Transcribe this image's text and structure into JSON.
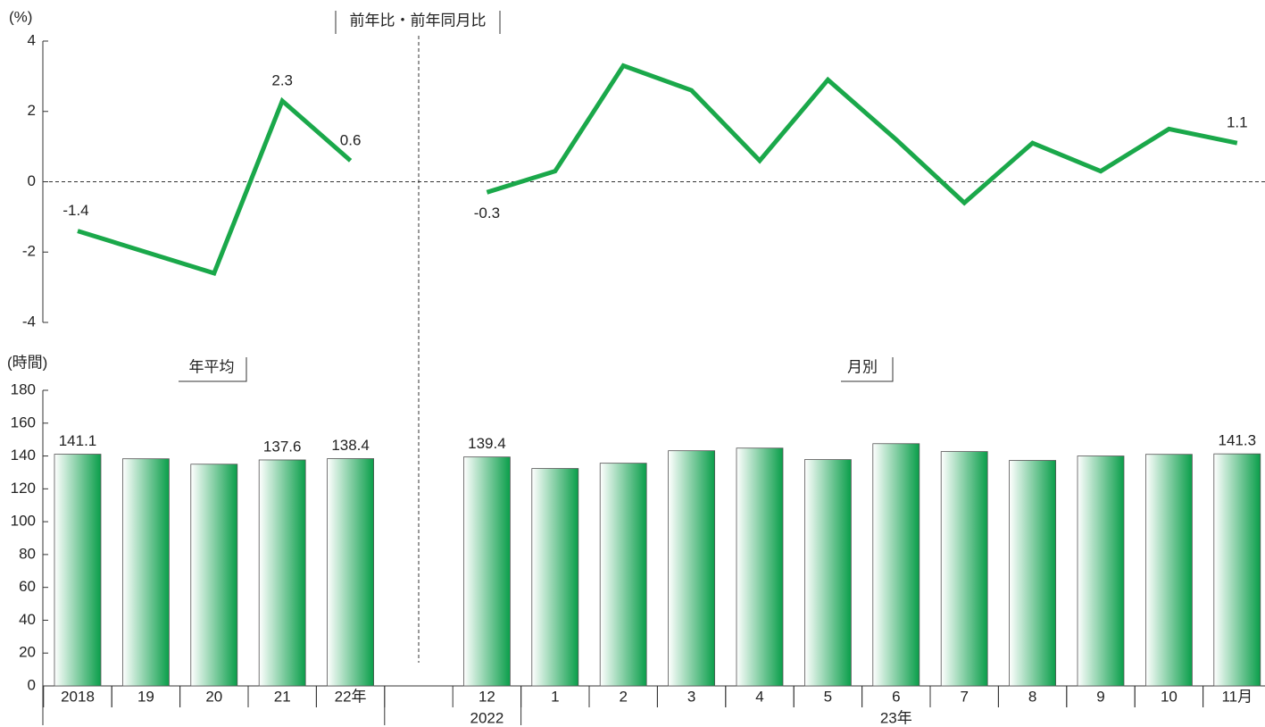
{
  "chart_data": [
    {
      "type": "line",
      "title": "前年比・前年同月比",
      "y_label": "(%)",
      "values": [
        -1.4,
        -2.0,
        -2.6,
        2.3,
        0.6,
        null,
        -0.3,
        0.3,
        3.3,
        2.6,
        0.6,
        2.9,
        1.2,
        -0.6,
        1.1,
        0.3,
        1.5,
        1.1
      ],
      "value_labels": [
        "-1.4",
        null,
        null,
        "2.3",
        "0.6",
        null,
        "-0.3",
        null,
        null,
        null,
        null,
        null,
        null,
        null,
        null,
        null,
        null,
        "1.1"
      ],
      "color": "#1aa84a",
      "ylim": [
        -4,
        4
      ],
      "yticks": [
        -4,
        -2,
        0,
        2,
        4
      ]
    },
    {
      "type": "bar",
      "y_label": "(時間)",
      "section_labels": [
        "年平均",
        "月別"
      ],
      "categories": [
        "2018",
        "19",
        "20",
        "21",
        "22年",
        null,
        "12",
        "1",
        "2",
        "3",
        "4",
        "5",
        "6",
        "7",
        "8",
        "9",
        "10",
        "11月"
      ],
      "year_groups": [
        {
          "label": "2022",
          "from": 6,
          "to": 6
        },
        {
          "label": "23年",
          "from": 7,
          "to": 17
        }
      ],
      "values": [
        141.1,
        138.3,
        135.0,
        137.6,
        138.4,
        null,
        139.4,
        132.4,
        135.6,
        143.2,
        144.8,
        137.8,
        147.5,
        142.7,
        137.3,
        140.0,
        141.0,
        141.3
      ],
      "value_labels": [
        "141.1",
        null,
        null,
        "137.6",
        "138.4",
        null,
        "139.4",
        null,
        null,
        null,
        null,
        null,
        null,
        null,
        null,
        null,
        null,
        "141.3"
      ],
      "color": "#0a9e4a",
      "ylim": [
        0,
        180
      ],
      "yticks": [
        0,
        20,
        40,
        60,
        80,
        100,
        120,
        140,
        160,
        180
      ]
    }
  ]
}
